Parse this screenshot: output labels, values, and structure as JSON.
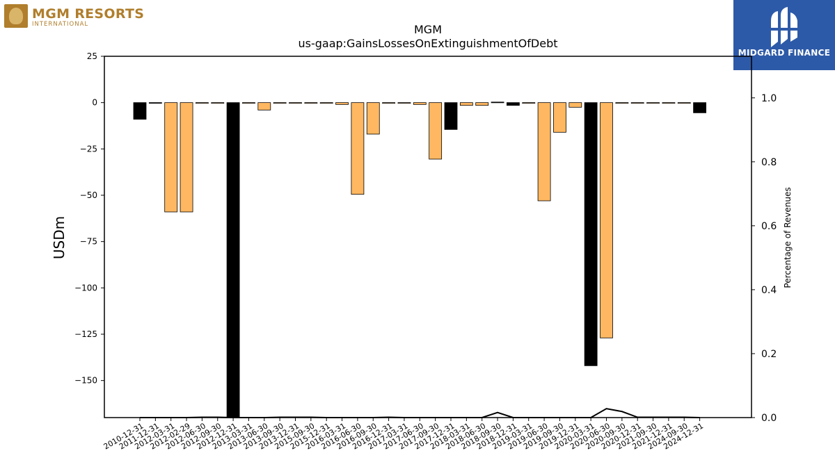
{
  "header": {
    "brand_name": "MGM RESORTS",
    "brand_sub": "INTERNATIONAL",
    "partner_name": "MIDGARD FINANCE"
  },
  "colors": {
    "ttm": "#000000",
    "quarterly": "#ffb861",
    "brand_gold": "#b07e2c",
    "partner_blue": "#2d5aa8"
  },
  "chart_data": {
    "type": "bar",
    "title": "MGM",
    "subtitle": "us-gaap:GainsLossesOnExtinguishmentOfDebt",
    "ylabel": "USDm",
    "y2label": "Percentage of Revenues",
    "ylim": [
      -170,
      25
    ],
    "y2lim": [
      0,
      1.13
    ],
    "yticks": [
      25,
      0,
      -25,
      -50,
      -75,
      -100,
      -125,
      -150
    ],
    "y2ticks": [
      0.0,
      0.2,
      0.4,
      0.6,
      0.8,
      1.0
    ],
    "categories": [
      "2010-12-31",
      "2011-12-31",
      "2012-03-31",
      "2012-02-29",
      "2012-06-30",
      "2012-09-30",
      "2012-12-31",
      "2013-03-31",
      "2013-06-30",
      "2013-09-30",
      "2013-12-31",
      "2015-09-30",
      "2015-12-31",
      "2016-03-31",
      "2016-06-30",
      "2016-09-30",
      "2016-12-31",
      "2017-03-31",
      "2017-06-30",
      "2017-09-30",
      "2017-12-31",
      "2018-03-31",
      "2018-06-30",
      "2018-09-30",
      "2018-12-31",
      "2019-03-31",
      "2019-06-30",
      "2019-09-30",
      "2019-12-31",
      "2020-03-31",
      "2020-06-30",
      "2020-09-30",
      "2020-12-31",
      "2021-09-30",
      "2021-12-31",
      "2024-09-30",
      "2024-12-31"
    ],
    "series": [
      {
        "values": [
          -9,
          0,
          -59,
          -59,
          0,
          0,
          -170,
          0,
          -4,
          0,
          0,
          0,
          0,
          -1,
          -49.5,
          -17,
          0,
          0,
          -1,
          -30.5,
          -14.5,
          -1.5,
          -1.5,
          0.3,
          -1.5,
          0,
          -53,
          -16,
          -2.5,
          -142,
          -127,
          0,
          0,
          0,
          0,
          0,
          -5.5
        ]
      },
      {
        "values": [
          0,
          0,
          0,
          0,
          0.001,
          0.001,
          0,
          0,
          0,
          0.001,
          0.001,
          0.001,
          0,
          0,
          0,
          0,
          0.001,
          0,
          0,
          0,
          0,
          0,
          0,
          0.016,
          0,
          0,
          0,
          0,
          0,
          0,
          0.028,
          0.019,
          0.001,
          0.001,
          0.001,
          0.001,
          0
        ]
      }
    ],
    "bar_kinds": [
      "ttm",
      "ttm",
      "q",
      "q",
      "q",
      "q",
      "ttm",
      "q",
      "q",
      "q",
      "q",
      "q",
      "q",
      "q",
      "q",
      "q",
      "q",
      "q",
      "q",
      "q",
      "ttm",
      "q",
      "q",
      "ttm",
      "ttm",
      "q",
      "q",
      "q",
      "q",
      "ttm",
      "q",
      "q",
      "q",
      "q",
      "q",
      "q",
      "ttm"
    ],
    "grid": false,
    "legend": "none"
  }
}
